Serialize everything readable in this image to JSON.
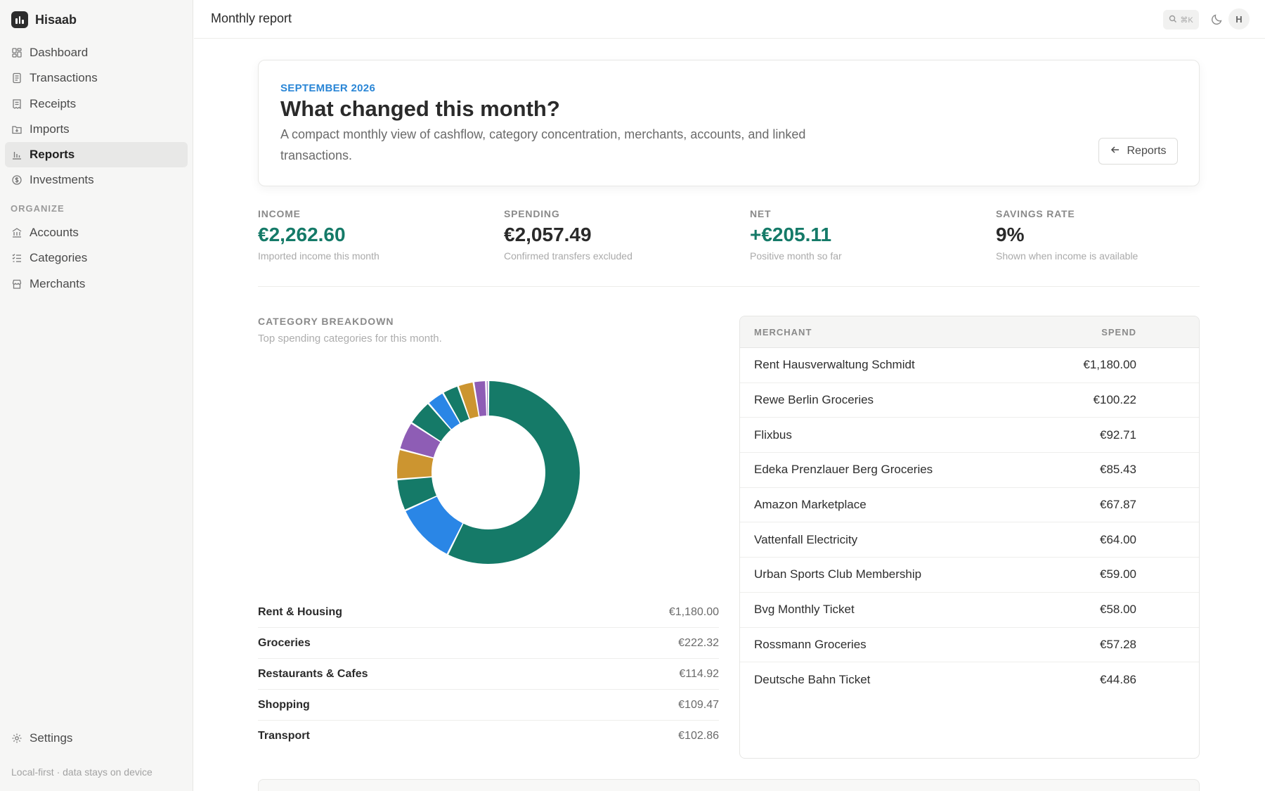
{
  "app": {
    "name": "Hisaab"
  },
  "sidebar": {
    "items": [
      {
        "label": "Dashboard",
        "icon": "dashboard-icon"
      },
      {
        "label": "Transactions",
        "icon": "transactions-icon"
      },
      {
        "label": "Receipts",
        "icon": "receipt-icon"
      },
      {
        "label": "Imports",
        "icon": "import-icon"
      },
      {
        "label": "Reports",
        "icon": "bar-chart-icon",
        "active": true
      },
      {
        "label": "Investments",
        "icon": "coin-icon"
      }
    ],
    "section_label": "ORGANIZE",
    "organize": [
      {
        "label": "Accounts",
        "icon": "bank-icon"
      },
      {
        "label": "Categories",
        "icon": "list-check-icon"
      },
      {
        "label": "Merchants",
        "icon": "store-icon"
      }
    ],
    "settings_label": "Settings",
    "footer": "Local-first · data stays on device"
  },
  "topbar": {
    "title": "Monthly report",
    "search_shortcut": "⌘K",
    "avatar_initial": "H"
  },
  "hero": {
    "kicker": "SEPTEMBER 2026",
    "title": "What changed this month?",
    "description": "A compact monthly view of cashflow, category concentration, merchants, accounts, and linked transactions.",
    "reports_button": "Reports"
  },
  "kpis": [
    {
      "label": "INCOME",
      "value": "€2,262.60",
      "sub": "Imported income this month",
      "positive": true
    },
    {
      "label": "SPENDING",
      "value": "€2,057.49",
      "sub": "Confirmed transfers excluded",
      "positive": false
    },
    {
      "label": "NET",
      "value": "+€205.11",
      "sub": "Positive month so far",
      "positive": true
    },
    {
      "label": "SAVINGS RATE",
      "value": "9%",
      "sub": "Shown when income is available",
      "positive": false
    }
  ],
  "category": {
    "heading": "CATEGORY BREAKDOWN",
    "subheading": "Top spending categories for this month.",
    "rows": [
      {
        "name": "Rent & Housing",
        "amount": "€1,180.00"
      },
      {
        "name": "Groceries",
        "amount": "€222.32"
      },
      {
        "name": "Restaurants & Cafes",
        "amount": "€114.92"
      },
      {
        "name": "Shopping",
        "amount": "€109.47"
      },
      {
        "name": "Transport",
        "amount": "€102.86"
      }
    ]
  },
  "chart_data": {
    "type": "pie",
    "style": "donut",
    "values": [
      1180.0,
      222.32,
      114.92,
      109.47,
      102.86,
      92.71,
      64.0,
      59.0,
      57.28,
      44.86,
      9.0
    ],
    "colors": [
      "#157a68",
      "#2a86e6",
      "#157a68",
      "#cc9530",
      "#8e5db5",
      "#157a68",
      "#2a86e6",
      "#157a68",
      "#cc9530",
      "#8e5db5",
      "#8e5db5"
    ]
  },
  "merchants": {
    "headers": {
      "merchant": "MERCHANT",
      "spend": "SPEND"
    },
    "rows": [
      {
        "name": "Rent Hausverwaltung Schmidt",
        "spend": "€1,180.00"
      },
      {
        "name": "Rewe Berlin Groceries",
        "spend": "€100.22"
      },
      {
        "name": "Flixbus",
        "spend": "€92.71"
      },
      {
        "name": "Edeka Prenzlauer Berg Groceries",
        "spend": "€85.43"
      },
      {
        "name": "Amazon Marketplace",
        "spend": "€67.87"
      },
      {
        "name": "Vattenfall Electricity",
        "spend": "€64.00"
      },
      {
        "name": "Urban Sports Club Membership",
        "spend": "€59.00"
      },
      {
        "name": "Bvg Monthly Ticket",
        "spend": "€58.00"
      },
      {
        "name": "Rossmann Groceries",
        "spend": "€57.28"
      },
      {
        "name": "Deutsche Bahn Ticket",
        "spend": "€44.86"
      }
    ]
  },
  "colors": {
    "accent_blue": "#2a86d6",
    "positive_green": "#157a68"
  }
}
